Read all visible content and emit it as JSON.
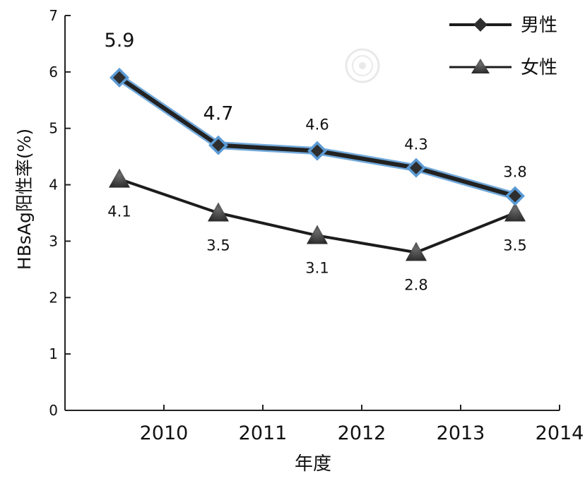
{
  "chart_data": {
    "type": "line",
    "title": "",
    "xlabel": "年度",
    "ylabel": "HBsAg阳性率(%)",
    "x": [
      "2010",
      "2011",
      "2012",
      "2013",
      "2014"
    ],
    "ylim": [
      0,
      7
    ],
    "yticks": [
      "0",
      "1",
      "2",
      "3",
      "4",
      "5",
      "6",
      "7"
    ],
    "grid": false,
    "legend_position": "top-right",
    "series": [
      {
        "name": "男性",
        "values": [
          5.9,
          4.7,
          4.6,
          4.3,
          3.8
        ],
        "labels": [
          "5.9",
          "4.7",
          "4.6",
          "4.3",
          "3.8"
        ],
        "marker": "diamond",
        "color": "#222222",
        "glow_color": "#5b9bd5",
        "marker_color": "#2e2e2e"
      },
      {
        "name": "女性",
        "values": [
          4.1,
          3.5,
          3.1,
          2.8,
          3.5
        ],
        "labels": [
          "4.1",
          "3.5",
          "3.1",
          "2.8",
          "3.5"
        ],
        "marker": "triangle",
        "color": "#1c1c1c",
        "marker_color": "#3a3a3a"
      }
    ]
  }
}
